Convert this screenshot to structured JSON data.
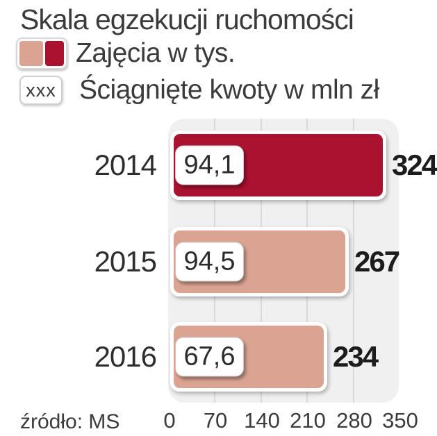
{
  "title": "Skala egzekucji ruchomości",
  "legend": {
    "items": [
      {
        "label": "Zajęcia w tys.",
        "swatch_colors": [
          "#dba492",
          "#aa1230"
        ]
      },
      {
        "label": "Ściągnięte kwoty w mln zł",
        "symbol": "xxx"
      }
    ]
  },
  "source": "źródło: MS",
  "colors": {
    "bar_red": "#aa1230",
    "bar_salmon": "#dba492",
    "panel_background": "#f0f0f1",
    "gridline": "#d9d9db",
    "text": "#3b3b3b"
  },
  "chart_data": {
    "type": "bar",
    "orientation": "horizontal",
    "title": "Skala egzekucji ruchomości",
    "categories": [
      "2014",
      "2015",
      "2016"
    ],
    "series": [
      {
        "name": "Zajęcia w tys.",
        "unit": "tys.",
        "values": [
          324,
          267,
          234
        ]
      },
      {
        "name": "Ściągnięte kwoty w mln zł",
        "unit": "mln zł",
        "values": [
          94.1,
          94.5,
          67.6
        ],
        "values_display": [
          "94,1",
          "94,5",
          "67,6"
        ]
      }
    ],
    "bar_colors": [
      "#aa1230",
      "#dba492",
      "#dba492"
    ],
    "xlim": [
      0,
      350
    ],
    "xticks": [
      "0",
      "70",
      "140",
      "210",
      "280",
      "350"
    ],
    "grid": true,
    "legend_position": "top-left",
    "source": "źródło: MS"
  }
}
